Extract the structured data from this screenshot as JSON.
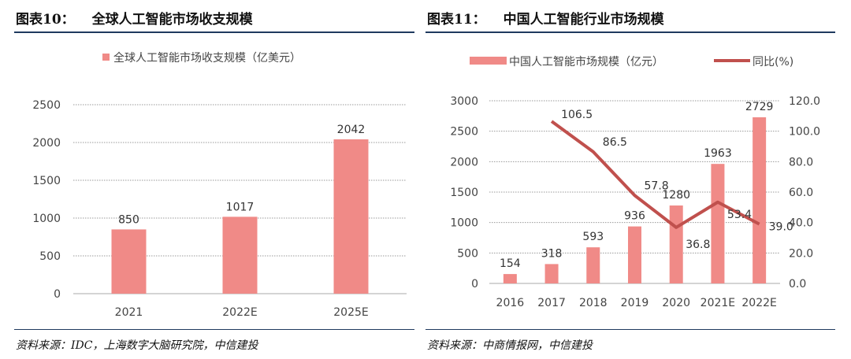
{
  "left": {
    "fig_label": "图表10：",
    "fig_title": "全球人工智能市场收支规模",
    "source": "资料来源：IDC，上海数字大脑研究院，中信建投",
    "chart_data": {
      "type": "bar",
      "categories": [
        "2021",
        "2022E",
        "2025E"
      ],
      "series": [
        {
          "name": "全球人工智能市场收支规模（亿美元）",
          "values": [
            850,
            1017,
            2042
          ],
          "color": "#f08a87"
        }
      ],
      "ylim": [
        0,
        2500
      ],
      "yticks": [
        "0",
        "500",
        "1000",
        "1500",
        "2000",
        "2500"
      ],
      "grid": true,
      "legend": "top"
    }
  },
  "right": {
    "fig_label": "图表11：",
    "fig_title": "中国人工智能行业市场规模",
    "source": "资料来源：中商情报网，中信建投",
    "chart_data": {
      "type": "bar+line",
      "categories": [
        "2016",
        "2017",
        "2018",
        "2019",
        "2020",
        "2021E",
        "2022E"
      ],
      "bar_series": {
        "name": "中国人工智能市场规模（亿元）",
        "values": [
          154,
          318,
          593,
          936,
          1280,
          1963,
          2729
        ],
        "labels": [
          "154",
          "318",
          "593",
          "936",
          "1280",
          "1963",
          "2729"
        ],
        "color": "#f08a87"
      },
      "line_series": {
        "name": "同比(%)",
        "values": [
          null,
          106.5,
          86.5,
          57.8,
          36.8,
          53.4,
          39.0
        ],
        "labels": [
          "",
          "106.5",
          "86.5",
          "57.8",
          "36.8",
          "53.4",
          "39.0"
        ],
        "color": "#c0504d"
      },
      "ylim_left": [
        0,
        3000
      ],
      "yticks_left": [
        "0",
        "500",
        "1000",
        "1500",
        "2000",
        "2500",
        "3000"
      ],
      "ylim_right": [
        0,
        120
      ],
      "yticks_right": [
        "0.0",
        "20.0",
        "40.0",
        "60.0",
        "80.0",
        "100.0",
        "120.0"
      ],
      "grid": true,
      "legend": "top"
    }
  }
}
